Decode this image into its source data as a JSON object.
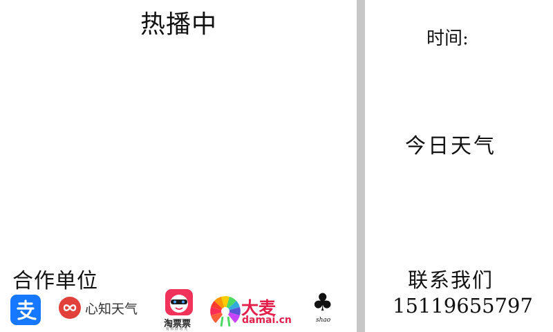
{
  "header": {
    "title": "热播中"
  },
  "sidebar": {
    "time_label": "时间:",
    "weather_label": "今日天气",
    "contact_label": "联系我们",
    "phone": "15119655797"
  },
  "partners": {
    "label": "合作单位",
    "logos": [
      {
        "name": "alipay",
        "icon": "alipay-logo",
        "color": "#1677ff"
      },
      {
        "name": "seniverse",
        "text": "心知天气",
        "color": "#e2403a"
      },
      {
        "name": "taopiaopiao",
        "text": "淘票票",
        "tagline": "有 你 好 时 光",
        "color": "#f1335b"
      },
      {
        "name": "damai",
        "text": "大麦",
        "domain": "damai.cn",
        "color": "#e3204b"
      },
      {
        "name": "shao",
        "text": "shao",
        "icon": "clover-icon"
      }
    ]
  },
  "colors": {
    "divider": "#c7c7c7",
    "background": "#ffffff"
  }
}
